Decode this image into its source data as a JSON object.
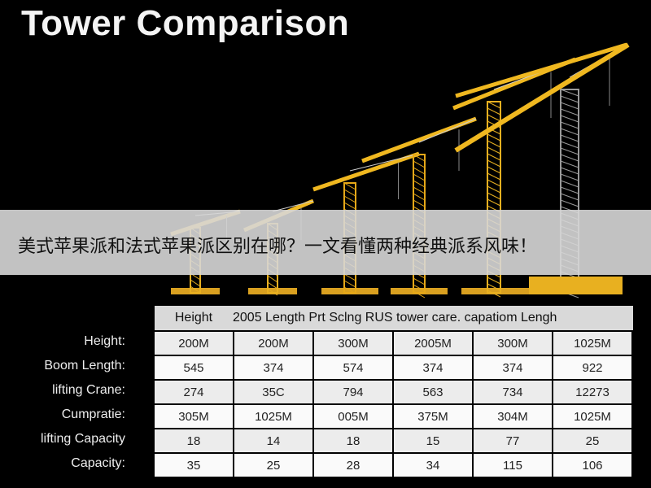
{
  "header": {
    "title": "Tower Comparison"
  },
  "banner": {
    "text": "美式苹果派和法式苹果派区别在哪？一文看懂两种经典派系风味！"
  },
  "table": {
    "header": [
      "Height",
      "2005 Length Prt Sclng RUS tower care. capatiom Lengh"
    ],
    "row_labels": [
      "Height:",
      "Boom Length:",
      "lifting Crane:",
      "Cumpratie:",
      "lifting Capacity",
      "Capacity:"
    ],
    "rows": [
      [
        "200M",
        "200M",
        "300M",
        "2005M",
        "300M",
        "1025M"
      ],
      [
        "545",
        "374",
        "574",
        "374",
        "374",
        "922"
      ],
      [
        "274",
        "35C",
        "794",
        "563",
        "734",
        "12273"
      ],
      [
        "305M",
        "1025M",
        "005M",
        "375M",
        "304M",
        "1025M"
      ],
      [
        "18",
        "14",
        "18",
        "15",
        "77",
        "25"
      ],
      [
        "35",
        "25",
        "28",
        "34",
        "115",
        "106"
      ]
    ]
  }
}
